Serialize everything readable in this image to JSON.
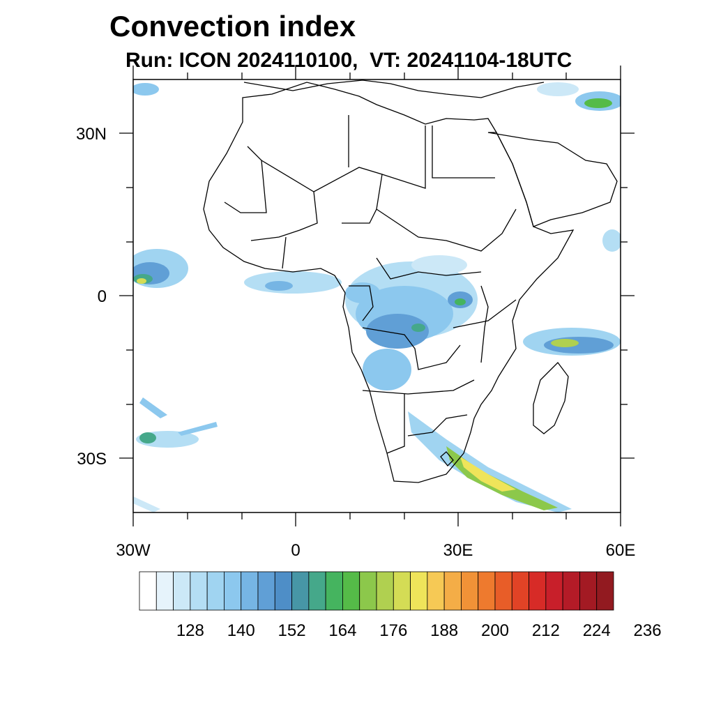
{
  "header": {
    "title": "Convection index",
    "subtitle": "Run: ICON 2024110100,  VT: 20241104-18UTC"
  },
  "map": {
    "lon_range": [
      -30,
      60
    ],
    "lat_range": [
      -40,
      40
    ],
    "lat_labels": [
      "30N",
      "0",
      "30S"
    ],
    "lon_labels": [
      "30W",
      "0",
      "30E",
      "60E"
    ],
    "colors": {
      "background": "#ffffff",
      "coastline": "#000000"
    }
  },
  "colorbar": {
    "colors": [
      "#ffffff",
      "#e6f3fb",
      "#cce8f7",
      "#b4def4",
      "#a0d4f1",
      "#8cc8ee",
      "#76b5e4",
      "#609fd6",
      "#4e8ec7",
      "#4796a6",
      "#45a88a",
      "#45b45f",
      "#55bb48",
      "#8cc84b",
      "#b0d050",
      "#d4dc55",
      "#efe45a",
      "#f6c955",
      "#f4ad47",
      "#f19237",
      "#ee7a2e",
      "#e85d28",
      "#e14326",
      "#d72b27",
      "#c81f2a",
      "#b41b27",
      "#a31a23",
      "#921a20"
    ],
    "labels": [
      "128",
      "140",
      "152",
      "164",
      "176",
      "188",
      "200",
      "212",
      "224",
      "236"
    ]
  }
}
